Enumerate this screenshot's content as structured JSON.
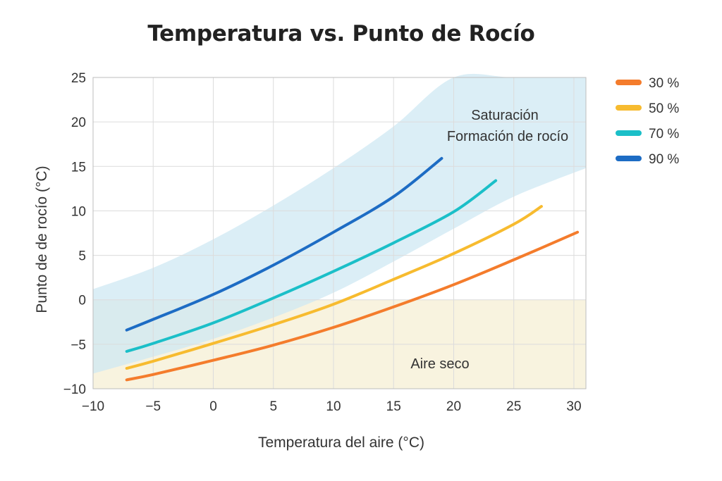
{
  "chart_data": {
    "type": "line",
    "title": "Temperatura vs. Punto de Rocío",
    "xlabel": "Temperatura del aire (°C)",
    "ylabel": "Punto de de rocío (°C)",
    "xlim": [
      -10,
      31
    ],
    "ylim": [
      -10,
      25
    ],
    "xticks": [
      -10,
      -5,
      0,
      5,
      10,
      15,
      20,
      25,
      30
    ],
    "yticks": [
      -10,
      -5,
      0,
      5,
      10,
      15,
      20,
      25
    ],
    "xtick_labels": [
      "−10",
      "−5",
      "0",
      "5",
      "10",
      "15",
      "20",
      "25",
      "30"
    ],
    "ytick_labels": [
      "−10",
      "−5",
      "0",
      "5",
      "10",
      "15",
      "20",
      "25"
    ],
    "grid": true,
    "legend_position": "right",
    "series": [
      {
        "name": "30 %",
        "color": "#f47c2c",
        "x": [
          -7.2,
          -5,
          0,
          5,
          10,
          15,
          20,
          25,
          30.3
        ],
        "y": [
          -9.0,
          -8.4,
          -6.8,
          -5.1,
          -3.1,
          -0.8,
          1.7,
          4.5,
          7.6
        ]
      },
      {
        "name": "50 %",
        "color": "#f7bb2f",
        "x": [
          -7.2,
          -5,
          0,
          5,
          10,
          15,
          20,
          25,
          27.3
        ],
        "y": [
          -7.7,
          -6.9,
          -4.9,
          -2.8,
          -0.5,
          2.3,
          5.2,
          8.5,
          10.5
        ]
      },
      {
        "name": "70 %",
        "color": "#1bbfc8",
        "x": [
          -7.2,
          -5,
          0,
          5,
          10,
          15,
          20,
          23.5
        ],
        "y": [
          -5.8,
          -4.9,
          -2.6,
          0.2,
          3.2,
          6.4,
          9.9,
          13.4
        ]
      },
      {
        "name": "90 %",
        "color": "#1d6cc4",
        "x": [
          -7.2,
          -5,
          0,
          5,
          10,
          15,
          19
        ],
        "y": [
          -3.4,
          -2.2,
          0.6,
          3.9,
          7.6,
          11.6,
          15.9
        ]
      }
    ],
    "regions": [
      {
        "label": "Saturación",
        "label2": "Formación de rocío",
        "color": "#cfe8f3",
        "x": [
          -10,
          -5,
          0,
          5,
          10,
          15,
          20,
          25,
          31
        ],
        "upper": [
          1.2,
          3.6,
          6.8,
          10.6,
          14.8,
          19.5,
          25,
          25,
          25
        ],
        "lower": [
          -8.3,
          -6.4,
          -4.4,
          -2.0,
          0.8,
          4.3,
          8.0,
          11.6,
          14.8
        ]
      },
      {
        "label": "Aire seco",
        "color": "#f8f3df",
        "ymin": -10,
        "ymax": 0
      }
    ]
  }
}
